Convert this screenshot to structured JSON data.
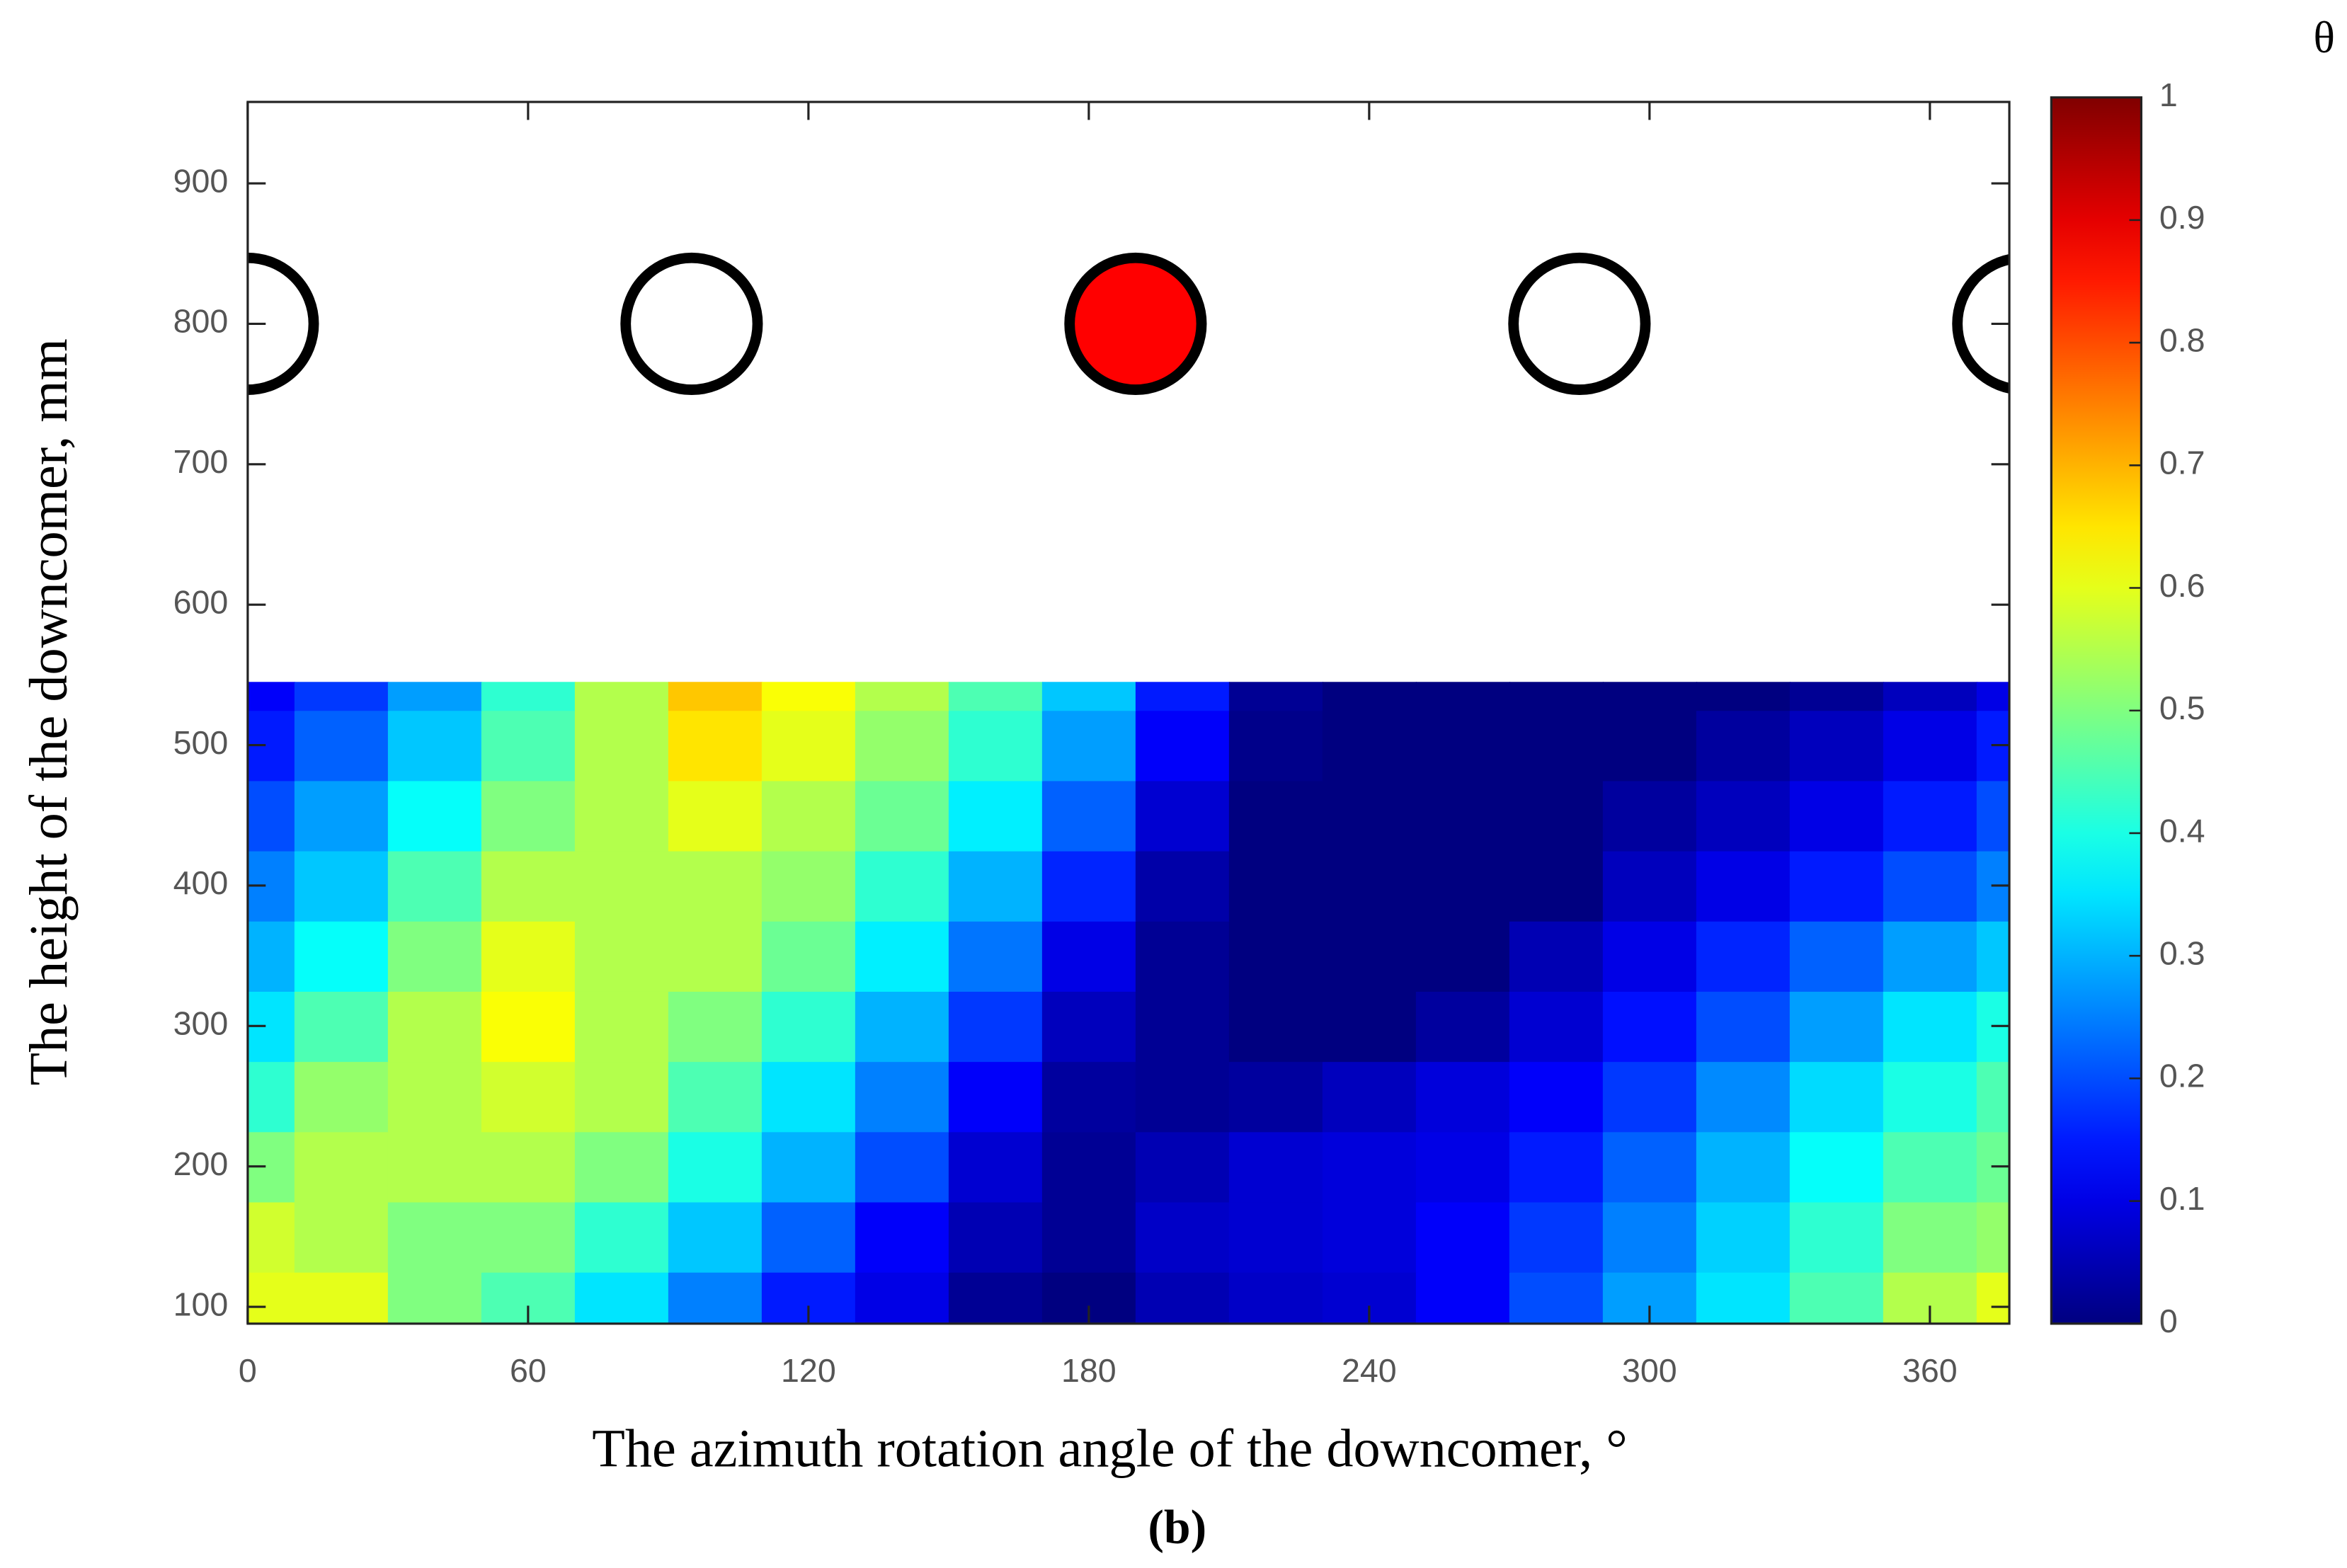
{
  "chart_data": {
    "type": "contour",
    "colorbar_label": "θ",
    "xlabel": "The azimuth rotation angle of the downcomer, °",
    "ylabel": "The height of the downcomer, mm",
    "caption": "(b)",
    "colormap": "jet",
    "x": [
      0,
      20,
      40,
      60,
      80,
      100,
      120,
      140,
      160,
      180,
      200,
      220,
      240,
      260,
      280,
      300,
      320,
      340,
      360,
      380
    ],
    "y": [
      100,
      150,
      200,
      250,
      300,
      350,
      400,
      450,
      500,
      550
    ],
    "z": [
      [
        0.6,
        0.6,
        0.5,
        0.45,
        0.35,
        0.25,
        0.15,
        0.1,
        0.02,
        0,
        0.05,
        0.07,
        0.08,
        0.12,
        0.2,
        0.28,
        0.35,
        0.45,
        0.55,
        0.6
      ],
      [
        0.58,
        0.55,
        0.5,
        0.5,
        0.42,
        0.32,
        0.22,
        0.12,
        0.05,
        0.02,
        0.07,
        0.08,
        0.09,
        0.12,
        0.18,
        0.25,
        0.33,
        0.42,
        0.5,
        0.52
      ],
      [
        0.5,
        0.55,
        0.55,
        0.55,
        0.5,
        0.4,
        0.3,
        0.2,
        0.08,
        0.02,
        0.05,
        0.08,
        0.09,
        0.1,
        0.15,
        0.22,
        0.3,
        0.38,
        0.45,
        0.48
      ],
      [
        0.42,
        0.52,
        0.55,
        0.58,
        0.55,
        0.45,
        0.35,
        0.25,
        0.12,
        0.03,
        0.02,
        0.03,
        0.06,
        0.09,
        0.12,
        0.18,
        0.26,
        0.34,
        0.4,
        0.45
      ],
      [
        0.35,
        0.45,
        0.55,
        0.62,
        0.55,
        0.5,
        0.42,
        0.3,
        0.18,
        0.06,
        0.02,
        0,
        0,
        0.03,
        0.08,
        0.14,
        0.2,
        0.28,
        0.35,
        0.4
      ],
      [
        0.3,
        0.38,
        0.5,
        0.6,
        0.55,
        0.55,
        0.48,
        0.36,
        0.24,
        0.1,
        0.02,
        0,
        0,
        0,
        0.05,
        0.1,
        0.16,
        0.22,
        0.28,
        0.32
      ],
      [
        0.25,
        0.32,
        0.45,
        0.55,
        0.55,
        0.55,
        0.52,
        0.42,
        0.3,
        0.16,
        0.04,
        0,
        0,
        0,
        0,
        0.06,
        0.1,
        0.15,
        0.2,
        0.25
      ],
      [
        0.2,
        0.28,
        0.38,
        0.5,
        0.55,
        0.6,
        0.55,
        0.48,
        0.36,
        0.22,
        0.08,
        0,
        0,
        0,
        0,
        0.03,
        0.06,
        0.1,
        0.15,
        0.2
      ],
      [
        0.15,
        0.22,
        0.32,
        0.45,
        0.55,
        0.65,
        0.6,
        0.52,
        0.42,
        0.28,
        0.12,
        0.01,
        0,
        0,
        0,
        0,
        0.03,
        0.06,
        0.1,
        0.15
      ],
      [
        0.12,
        0.18,
        0.28,
        0.42,
        0.55,
        0.68,
        0.62,
        0.55,
        0.45,
        0.32,
        0.15,
        0.02,
        0,
        0,
        0,
        0,
        0,
        0.02,
        0.06,
        0.1
      ]
    ],
    "data_top": 545,
    "inlets": {
      "x": [
        0,
        95,
        190,
        285,
        380
      ],
      "y": [
        800,
        800,
        800,
        800,
        800
      ],
      "fill": [
        "none",
        "none",
        "#ff0000",
        "none",
        "none"
      ]
    },
    "xlim": [
      0,
      377
    ],
    "ylim": [
      88,
      958
    ],
    "xticks": [
      0,
      60,
      120,
      180,
      240,
      300,
      360
    ],
    "yticks": [
      100,
      200,
      300,
      400,
      500,
      600,
      700,
      800,
      900
    ],
    "clim": [
      0,
      1
    ],
    "cticks": [
      0,
      0.1,
      0.2,
      0.3,
      0.4,
      0.5,
      0.6,
      0.7,
      0.8,
      0.9,
      1
    ]
  }
}
